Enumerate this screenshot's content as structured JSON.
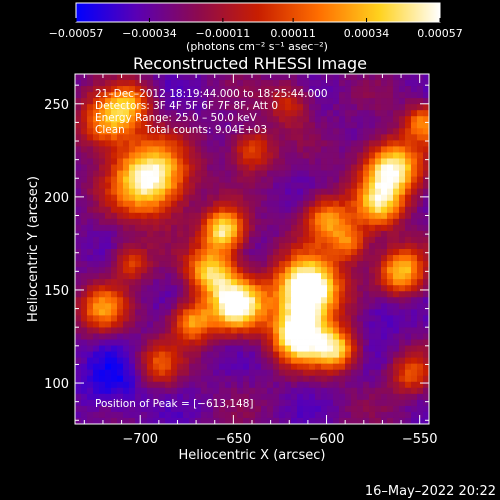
{
  "chart_data": {
    "type": "heatmap",
    "title": "Reconstructed RHESSI Image",
    "xlabel": "Heliocentric X (arcsec)",
    "ylabel": "Heliocentric Y (arcsec)",
    "xlim": [
      -735,
      -545
    ],
    "ylim": [
      78,
      266
    ],
    "xticks": [
      -700,
      -650,
      -600,
      -550
    ],
    "xtick_labels": [
      "−700",
      "−650",
      "−600",
      "−550"
    ],
    "yticks": [
      100,
      150,
      200,
      250
    ],
    "ytick_labels": [
      "100",
      "150",
      "200",
      "250"
    ],
    "colorbar": {
      "vmin": -0.00057,
      "vmax": 0.00057,
      "ticks": [
        -0.00057,
        -0.00034,
        -0.00011,
        0.00011,
        0.00034,
        0.00057
      ],
      "tick_labels": [
        "−0.00057",
        "−0.00034",
        "−0.00011",
        "0.00011",
        "0.00034",
        "0.00057"
      ],
      "units": "(photons cm⁻² s⁻¹ asec⁻²)",
      "colormap": [
        "#0000ff",
        "#5a00b4",
        "#8c0a50",
        "#c81e00",
        "#ff6e00",
        "#ffd21e",
        "#ffffff"
      ]
    },
    "annotations": {
      "time_range": "21–Dec–2012 18:19:44.000 to 18:25:44.000",
      "detectors": "Detectors: 3F 4F 5F 6F 7F 8F, Att 0",
      "energy": "Energy Range: 25.0 – 50.0 keV",
      "method": "Clean",
      "counts": "Total counts: 9.04E+03",
      "peak": "Position of Peak = [−613,148]"
    },
    "peak_position": [
      -613,
      148
    ],
    "intensity_blobs": [
      {
        "x": -610,
        "y": 150,
        "sigma": 12,
        "amp": 1.0
      },
      {
        "x": -615,
        "y": 125,
        "sigma": 10,
        "amp": 0.8
      },
      {
        "x": -595,
        "y": 118,
        "sigma": 8,
        "amp": 0.6
      },
      {
        "x": -648,
        "y": 142,
        "sigma": 10,
        "amp": 0.8
      },
      {
        "x": -662,
        "y": 160,
        "sigma": 9,
        "amp": 0.6
      },
      {
        "x": -672,
        "y": 133,
        "sigma": 8,
        "amp": 0.5
      },
      {
        "x": -655,
        "y": 182,
        "sigma": 8,
        "amp": 0.7
      },
      {
        "x": -695,
        "y": 210,
        "sigma": 14,
        "amp": 0.8
      },
      {
        "x": -718,
        "y": 240,
        "sigma": 10,
        "amp": 0.5
      },
      {
        "x": -705,
        "y": 250,
        "sigma": 8,
        "amp": 0.4
      },
      {
        "x": -600,
        "y": 188,
        "sigma": 9,
        "amp": 0.5
      },
      {
        "x": -565,
        "y": 215,
        "sigma": 11,
        "amp": 0.75
      },
      {
        "x": -572,
        "y": 195,
        "sigma": 9,
        "amp": 0.5
      },
      {
        "x": -560,
        "y": 160,
        "sigma": 9,
        "amp": 0.6
      },
      {
        "x": -587,
        "y": 175,
        "sigma": 7,
        "amp": 0.4
      },
      {
        "x": -720,
        "y": 140,
        "sigma": 9,
        "amp": 0.45
      },
      {
        "x": -705,
        "y": 165,
        "sigma": 7,
        "amp": 0.35
      },
      {
        "x": -640,
        "y": 225,
        "sigma": 8,
        "amp": 0.4
      },
      {
        "x": -690,
        "y": 110,
        "sigma": 8,
        "amp": 0.35
      },
      {
        "x": -555,
        "y": 105,
        "sigma": 8,
        "amp": 0.35
      },
      {
        "x": -620,
        "y": 250,
        "sigma": 8,
        "amp": 0.3
      },
      {
        "x": -548,
        "y": 240,
        "sigma": 7,
        "amp": 0.45
      }
    ]
  },
  "footer": {
    "timestamp": "16–May–2022 20:22"
  }
}
